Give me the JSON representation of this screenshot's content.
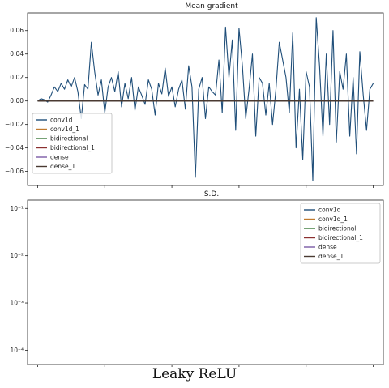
{
  "chart_data": [
    {
      "type": "line",
      "title": "Mean gradient",
      "xlabel": "",
      "ylabel": "",
      "ylim": [
        -0.072,
        0.075
      ],
      "yticks": [
        0.06,
        0.04,
        0.02,
        0.0,
        -0.02,
        -0.04,
        -0.06
      ],
      "ytick_labels": [
        "0.06",
        "0.04",
        "0.02",
        "0.00",
        "−0.02",
        "−0.04",
        "−0.06"
      ],
      "xlim": [
        -3,
        103
      ],
      "xticks": [
        0,
        20,
        40,
        60,
        80,
        100
      ],
      "legend_position": "lower-left",
      "grid": false,
      "series": [
        {
          "name": "conv1d",
          "color": "#1f4e79",
          "values": [
            0.0,
            0.002,
            0.001,
            -0.001,
            0.005,
            0.012,
            0.008,
            0.015,
            0.01,
            0.018,
            0.012,
            0.02,
            0.008,
            -0.015,
            0.014,
            0.01,
            0.05,
            0.025,
            0.005,
            0.018,
            -0.01,
            0.012,
            0.02,
            0.008,
            0.025,
            -0.005,
            0.015,
            0.002,
            0.02,
            -0.008,
            0.012,
            0.005,
            -0.003,
            0.018,
            0.01,
            -0.012,
            0.015,
            0.006,
            0.028,
            0.004,
            0.012,
            -0.005,
            0.01,
            0.018,
            -0.007,
            0.03,
            0.012,
            -0.065,
            0.01,
            0.02,
            -0.015,
            0.012,
            0.008,
            0.005,
            0.035,
            -0.01,
            0.063,
            0.02,
            0.052,
            -0.025,
            0.062,
            0.03,
            -0.015,
            0.01,
            0.04,
            -0.03,
            0.02,
            0.015,
            -0.012,
            0.015,
            -0.02,
            0.01,
            0.05,
            0.035,
            0.02,
            -0.01,
            0.058,
            -0.04,
            0.01,
            -0.05,
            0.025,
            0.012,
            -0.068,
            0.071,
            0.03,
            -0.03,
            0.04,
            -0.02,
            0.06,
            -0.035,
            0.025,
            0.01,
            0.04,
            -0.03,
            0.02,
            -0.045,
            0.042,
            0.005,
            -0.025,
            0.01,
            0.015
          ]
        },
        {
          "name": "conv1d_1",
          "color": "#c07a2e",
          "values": []
        },
        {
          "name": "bidirectional",
          "color": "#3a7a3a",
          "values": []
        },
        {
          "name": "bidirectional_1",
          "color": "#8b2f2f",
          "values": []
        },
        {
          "name": "dense",
          "color": "#7b5aa6",
          "values": []
        },
        {
          "name": "dense_1",
          "color": "#4a3a32",
          "values": [
            0,
            0,
            0,
            0,
            0,
            0,
            0,
            0,
            0,
            0,
            0,
            0,
            0,
            0,
            0,
            0,
            0,
            0,
            0,
            0,
            0,
            0,
            0,
            0,
            0,
            0,
            0,
            0,
            0,
            0,
            0,
            0,
            0,
            0,
            0,
            0,
            0,
            0,
            0,
            0,
            0,
            0,
            0,
            0,
            0,
            0,
            0,
            0,
            0,
            0,
            0,
            0,
            0,
            0,
            0,
            0,
            0,
            0,
            0,
            0,
            0,
            0,
            0,
            0,
            0,
            0,
            0,
            0,
            0,
            0,
            0,
            0,
            0,
            0,
            0,
            0,
            0,
            0,
            0,
            0,
            0,
            0,
            0,
            0,
            0,
            0,
            0,
            0,
            0,
            0,
            0,
            0,
            0,
            0,
            0,
            0,
            0,
            0,
            0,
            0,
            0
          ]
        }
      ]
    },
    {
      "type": "line",
      "title": "S.D.",
      "xlabel": "",
      "ylabel": "",
      "yscale": "log",
      "ylim": [
        5e-05,
        0.15
      ],
      "yticks": [
        0.1,
        0.01,
        0.001,
        0.0001
      ],
      "ytick_labels": [
        "10⁻¹",
        "10⁻²",
        "10⁻³",
        "10⁻⁴"
      ],
      "xlim": [
        -3,
        103
      ],
      "xticks": [
        0,
        20,
        40,
        60,
        80,
        100
      ],
      "legend_position": "upper-right",
      "grid": false,
      "series": [
        {
          "name": "conv1d",
          "color": "#1f4e79",
          "values": []
        },
        {
          "name": "conv1d_1",
          "color": "#c07a2e",
          "values": []
        },
        {
          "name": "bidirectional",
          "color": "#3a7a3a",
          "values": []
        },
        {
          "name": "bidirectional_1",
          "color": "#8b2f2f",
          "values": []
        },
        {
          "name": "dense",
          "color": "#7b5aa6",
          "values": []
        },
        {
          "name": "dense_1",
          "color": "#4a3a32",
          "values": []
        }
      ]
    }
  ],
  "caption": "Leaky ReLU"
}
